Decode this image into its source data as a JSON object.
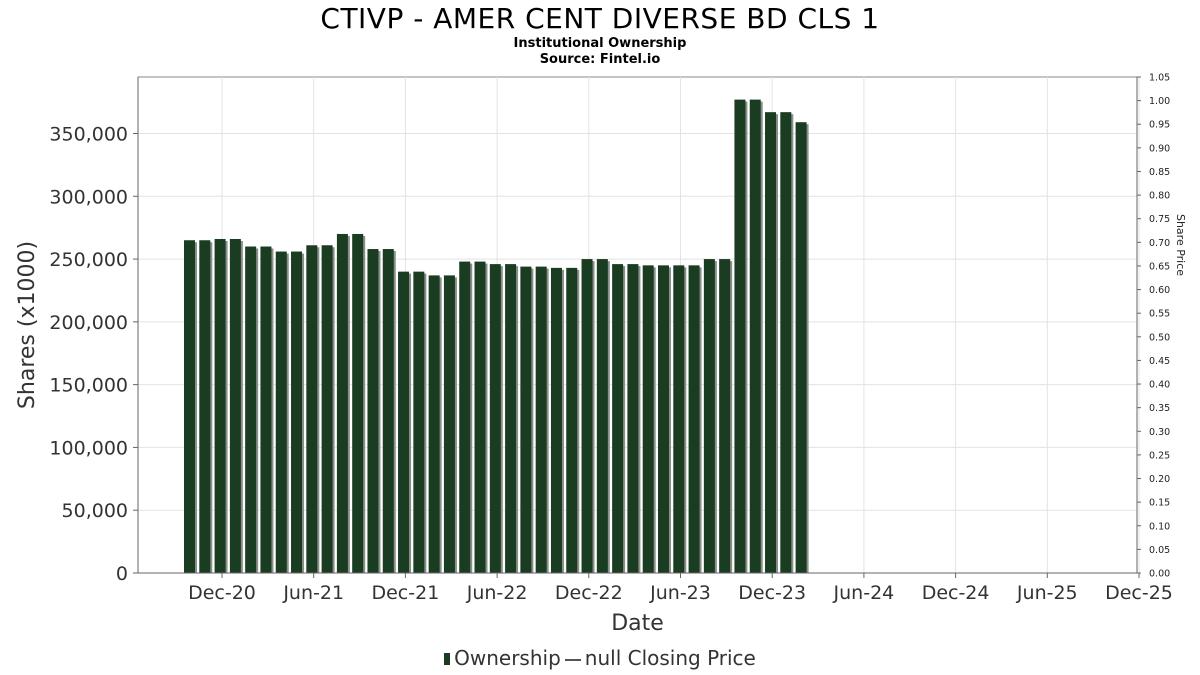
{
  "chart_data": {
    "type": "bar",
    "title": "CTIVP - AMER CENT DIVERSE BD CLS 1",
    "subtitle": "Institutional Ownership",
    "source": "Source: Fintel.io",
    "xlabel": "Date",
    "ylabel": "Shares (x1000)",
    "ylabel_right": "Share Price",
    "ylim": [
      0,
      395000
    ],
    "ylim_right": [
      0,
      1.05
    ],
    "yticks": [
      "0",
      "50,000",
      "100,000",
      "150,000",
      "200,000",
      "250,000",
      "300,000",
      "350,000"
    ],
    "yticks_right": [
      "0.00",
      "0.05",
      "0.10",
      "0.15",
      "0.20",
      "0.25",
      "0.30",
      "0.35",
      "0.40",
      "0.45",
      "0.50",
      "0.55",
      "0.60",
      "0.65",
      "0.70",
      "0.75",
      "0.80",
      "0.85",
      "0.90",
      "0.95",
      "1.00",
      "1.05"
    ],
    "xticks": [
      "Dec-20",
      "Jun-21",
      "Dec-21",
      "Jun-22",
      "Dec-22",
      "Jun-23",
      "Dec-23",
      "Jun-24",
      "Dec-24",
      "Jun-25",
      "Dec-25"
    ],
    "grid": true,
    "legend_position": "bottom",
    "series": [
      {
        "name": "Ownership",
        "color": "#1a3d22",
        "values": [
          265000,
          265000,
          266000,
          266000,
          260000,
          260000,
          256000,
          256000,
          261000,
          261000,
          270000,
          270000,
          258000,
          258000,
          240000,
          240000,
          237000,
          237000,
          248000,
          248000,
          246000,
          246000,
          244000,
          244000,
          243000,
          243000,
          250000,
          250000,
          246000,
          246000,
          245000,
          245000,
          245000,
          245000,
          250000,
          250000,
          377000,
          377000,
          367000,
          367000,
          359000
        ]
      },
      {
        "name": "null Closing Price",
        "color": "#555555",
        "values": []
      }
    ],
    "legend": [
      {
        "label": "Ownership"
      },
      {
        "label": "null Closing Price"
      }
    ]
  }
}
